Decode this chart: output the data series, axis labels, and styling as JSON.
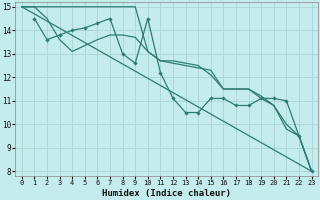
{
  "xlabel": "Humidex (Indice chaleur)",
  "bg_color": "#c5ecec",
  "grid_color": "#aed8d8",
  "line_color": "#2e7d72",
  "xlim": [
    -0.5,
    23.5
  ],
  "ylim": [
    7.8,
    15.2
  ],
  "xticks": [
    0,
    1,
    2,
    3,
    4,
    5,
    6,
    7,
    8,
    9,
    10,
    11,
    12,
    13,
    14,
    15,
    16,
    17,
    18,
    19,
    20,
    21,
    22,
    23
  ],
  "yticks": [
    8,
    9,
    10,
    11,
    12,
    13,
    14,
    15
  ],
  "lines": [
    {
      "x": [
        0,
        1,
        2,
        3,
        4,
        5,
        6,
        7,
        8,
        9,
        10,
        11,
        12,
        13,
        14,
        15,
        16,
        17,
        18,
        19,
        20,
        21,
        22,
        23
      ],
      "y": [
        15,
        15,
        15,
        15,
        15,
        15,
        15,
        15,
        15,
        15,
        13.1,
        12.7,
        12.7,
        12.6,
        12.5,
        12.1,
        11.5,
        11.5,
        11.5,
        11.1,
        10.8,
        9.8,
        9.5,
        8.0
      ],
      "marker": false
    },
    {
      "x": [
        1,
        2,
        3,
        4,
        5,
        6,
        7,
        8,
        9,
        10,
        11,
        12,
        13,
        14,
        15,
        16,
        17,
        18,
        19,
        20,
        21,
        22,
        23
      ],
      "y": [
        14.5,
        13.6,
        13.8,
        14.0,
        14.1,
        14.3,
        14.5,
        13.0,
        12.6,
        14.5,
        12.2,
        11.1,
        10.5,
        10.5,
        11.1,
        11.1,
        10.8,
        10.8,
        11.1,
        11.1,
        11.0,
        9.5,
        8.0
      ],
      "marker": true
    },
    {
      "x": [
        0,
        1,
        2,
        3,
        4,
        5,
        6,
        7,
        8,
        9,
        10,
        11,
        12,
        13,
        14,
        15,
        16,
        17,
        18,
        19,
        20,
        21,
        22,
        23
      ],
      "y": [
        15,
        15,
        14.5,
        13.6,
        13.1,
        13.35,
        13.6,
        13.8,
        13.8,
        13.7,
        13.1,
        12.7,
        12.6,
        12.5,
        12.4,
        12.3,
        11.5,
        11.5,
        11.5,
        11.2,
        10.8,
        10.0,
        9.5,
        8.0
      ],
      "marker": false
    },
    {
      "x": [
        0,
        23
      ],
      "y": [
        15,
        8.0
      ],
      "marker": false
    }
  ]
}
